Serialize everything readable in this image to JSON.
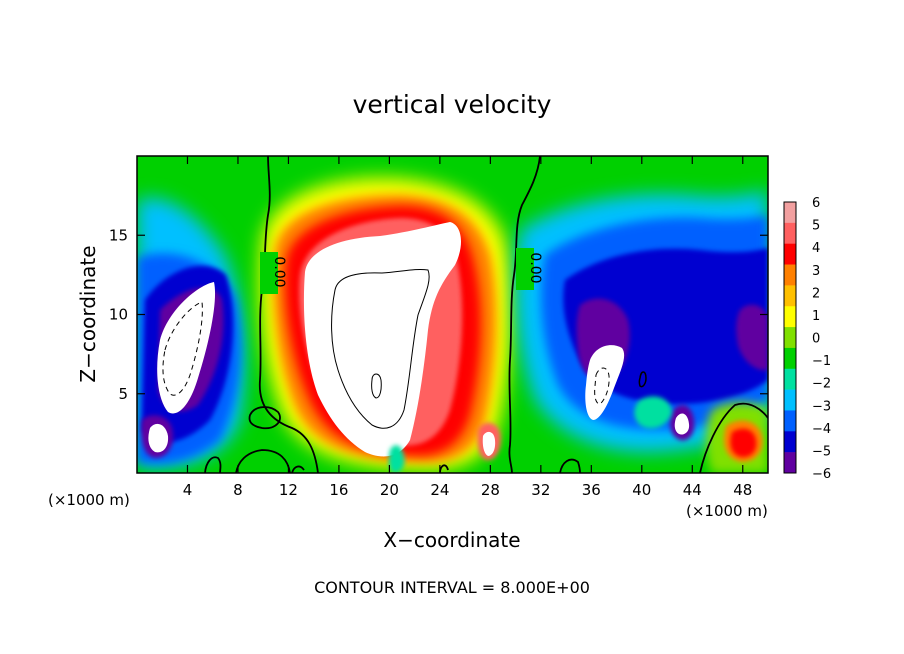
{
  "chart_data": {
    "type": "heatmap",
    "title": "vertical velocity",
    "xlabel": "X−coordinate",
    "ylabel": "Z−coordinate",
    "x_unit_label": "(×1000 m)",
    "x_unit_label_right": "(×1000 m)",
    "footer": "CONTOUR INTERVAL = 8.000E+00",
    "xlim": [
      0,
      50
    ],
    "ylim": [
      0,
      20
    ],
    "x_ticks": [
      4,
      8,
      12,
      16,
      20,
      24,
      28,
      32,
      36,
      40,
      44,
      48
    ],
    "y_ticks": [
      5,
      10,
      15
    ],
    "grid": false,
    "colorbar": {
      "labels": [
        "6",
        "5",
        "4",
        "3",
        "2",
        "1",
        "0",
        "−1",
        "−2",
        "−3",
        "−4",
        "−5",
        "−6"
      ],
      "colors": [
        "#f2a0a0",
        "#ff6060",
        "#ff0000",
        "#ff8000",
        "#ffc000",
        "#ffff00",
        "#80e000",
        "#00d000",
        "#00e0a0",
        "#00c0ff",
        "#0060ff",
        "#0000d0",
        "#6000a0"
      ]
    },
    "contour_labels": [
      {
        "text": "0.00",
        "x": 10.5,
        "z": 12.8
      },
      {
        "text": "0.00",
        "x": 30.2,
        "z": 13.0
      }
    ]
  }
}
